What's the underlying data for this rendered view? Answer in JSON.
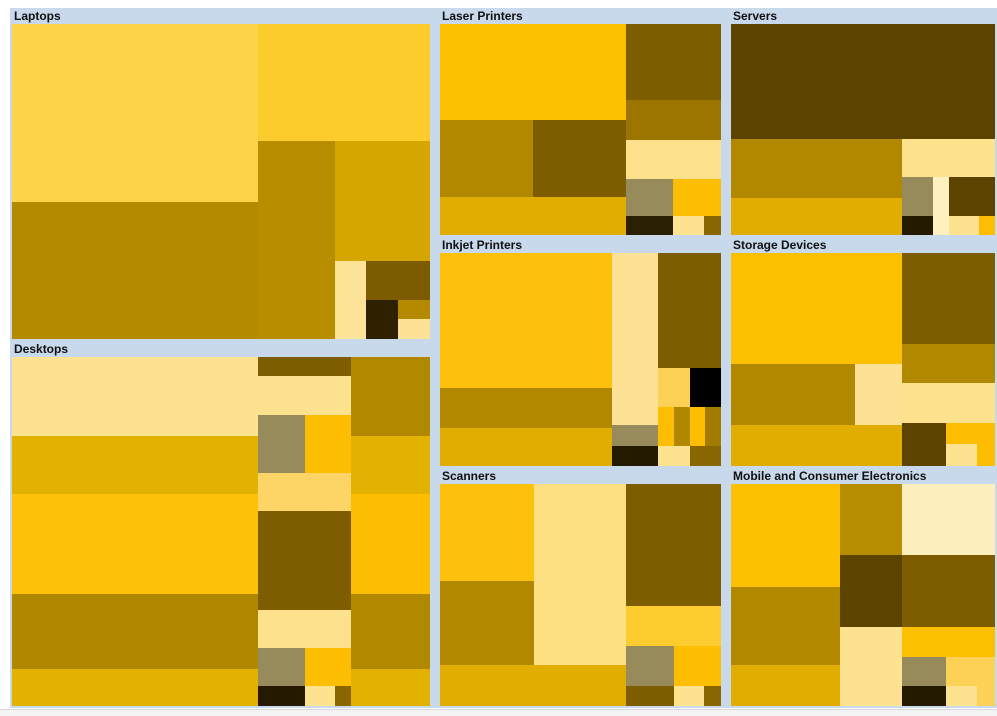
{
  "chart_data": {
    "type": "treemap",
    "groups": [
      {
        "name": "Laptops",
        "cells": [
          {
            "x": 0.0,
            "y": 0.0,
            "w": 0.588,
            "h": 0.565,
            "color": "#fcd349"
          },
          {
            "x": 0.0,
            "y": 0.565,
            "w": 0.588,
            "h": 0.435,
            "color": "#b48b00"
          },
          {
            "x": 0.588,
            "y": 0.0,
            "w": 0.412,
            "h": 0.373,
            "color": "#fccb2c"
          },
          {
            "x": 0.588,
            "y": 0.373,
            "w": 0.184,
            "h": 0.627,
            "color": "#b88e00"
          },
          {
            "x": 0.772,
            "y": 0.373,
            "w": 0.228,
            "h": 0.379,
            "color": "#d6a600"
          },
          {
            "x": 0.772,
            "y": 0.752,
            "w": 0.075,
            "h": 0.248,
            "color": "#fde397"
          },
          {
            "x": 0.847,
            "y": 0.752,
            "w": 0.153,
            "h": 0.124,
            "color": "#7d5b00"
          },
          {
            "x": 0.847,
            "y": 0.876,
            "w": 0.076,
            "h": 0.124,
            "color": "#2d2100"
          },
          {
            "x": 0.923,
            "y": 0.876,
            "w": 0.077,
            "h": 0.06,
            "color": "#b58a00"
          },
          {
            "x": 0.923,
            "y": 0.936,
            "w": 0.077,
            "h": 0.064,
            "color": "#fde195"
          }
        ]
      },
      {
        "name": "Desktops",
        "cells": [
          {
            "x": 0.0,
            "y": 0.0,
            "w": 0.588,
            "h": 0.227,
            "color": "#fde291"
          },
          {
            "x": 0.0,
            "y": 0.227,
            "w": 0.588,
            "h": 0.166,
            "color": "#e3b100"
          },
          {
            "x": 0.0,
            "y": 0.393,
            "w": 0.588,
            "h": 0.287,
            "color": "#fdc109"
          },
          {
            "x": 0.0,
            "y": 0.68,
            "w": 0.588,
            "h": 0.213,
            "color": "#b08800"
          },
          {
            "x": 0.0,
            "y": 0.893,
            "w": 0.588,
            "h": 0.107,
            "color": "#e3b100"
          },
          {
            "x": 0.588,
            "y": 0.0,
            "w": 0.224,
            "h": 0.055,
            "color": "#7e5c00"
          },
          {
            "x": 0.588,
            "y": 0.055,
            "w": 0.224,
            "h": 0.11,
            "color": "#fde390"
          },
          {
            "x": 0.588,
            "y": 0.165,
            "w": 0.112,
            "h": 0.166,
            "color": "#978a5b"
          },
          {
            "x": 0.7,
            "y": 0.165,
            "w": 0.112,
            "h": 0.166,
            "color": "#fdbd00"
          },
          {
            "x": 0.588,
            "y": 0.331,
            "w": 0.224,
            "h": 0.111,
            "color": "#fdd466"
          },
          {
            "x": 0.588,
            "y": 0.442,
            "w": 0.224,
            "h": 0.282,
            "color": "#7e5c00"
          },
          {
            "x": 0.588,
            "y": 0.724,
            "w": 0.224,
            "h": 0.11,
            "color": "#fde18c"
          },
          {
            "x": 0.588,
            "y": 0.834,
            "w": 0.112,
            "h": 0.11,
            "color": "#978a5b"
          },
          {
            "x": 0.7,
            "y": 0.834,
            "w": 0.112,
            "h": 0.11,
            "color": "#fdbd00"
          },
          {
            "x": 0.588,
            "y": 0.944,
            "w": 0.112,
            "h": 0.056,
            "color": "#251a00"
          },
          {
            "x": 0.7,
            "y": 0.944,
            "w": 0.073,
            "h": 0.056,
            "color": "#fde390"
          },
          {
            "x": 0.773,
            "y": 0.944,
            "w": 0.039,
            "h": 0.056,
            "color": "#8a6600"
          },
          {
            "x": 0.812,
            "y": 0.0,
            "w": 0.188,
            "h": 0.227,
            "color": "#b18800"
          },
          {
            "x": 0.812,
            "y": 0.227,
            "w": 0.188,
            "h": 0.166,
            "color": "#e3b100"
          },
          {
            "x": 0.812,
            "y": 0.393,
            "w": 0.188,
            "h": 0.287,
            "color": "#fdbd00"
          },
          {
            "x": 0.812,
            "y": 0.68,
            "w": 0.188,
            "h": 0.213,
            "color": "#b18800"
          },
          {
            "x": 0.812,
            "y": 0.893,
            "w": 0.188,
            "h": 0.107,
            "color": "#e3b100"
          }
        ]
      },
      {
        "name": "Laser Printers",
        "cells": [
          {
            "x": 0.0,
            "y": 0.0,
            "w": 0.663,
            "h": 0.454,
            "color": "#fdc000"
          },
          {
            "x": 0.0,
            "y": 0.454,
            "w": 0.33,
            "h": 0.367,
            "color": "#b28800"
          },
          {
            "x": 0.33,
            "y": 0.454,
            "w": 0.333,
            "h": 0.367,
            "color": "#7e5c00"
          },
          {
            "x": 0.0,
            "y": 0.821,
            "w": 0.663,
            "h": 0.179,
            "color": "#e0ad00"
          },
          {
            "x": 0.663,
            "y": 0.0,
            "w": 0.337,
            "h": 0.358,
            "color": "#7e5c00"
          },
          {
            "x": 0.663,
            "y": 0.358,
            "w": 0.337,
            "h": 0.193,
            "color": "#9c7400"
          },
          {
            "x": 0.663,
            "y": 0.551,
            "w": 0.337,
            "h": 0.182,
            "color": "#fde18c"
          },
          {
            "x": 0.663,
            "y": 0.733,
            "w": 0.167,
            "h": 0.179,
            "color": "#978a5b"
          },
          {
            "x": 0.83,
            "y": 0.733,
            "w": 0.17,
            "h": 0.179,
            "color": "#fdbd00"
          },
          {
            "x": 0.663,
            "y": 0.912,
            "w": 0.167,
            "h": 0.088,
            "color": "#2a1f00"
          },
          {
            "x": 0.83,
            "y": 0.912,
            "w": 0.11,
            "h": 0.088,
            "color": "#fde390"
          },
          {
            "x": 0.94,
            "y": 0.912,
            "w": 0.06,
            "h": 0.088,
            "color": "#8a6600"
          }
        ]
      },
      {
        "name": "Inkjet Printers",
        "cells": [
          {
            "x": 0.0,
            "y": 0.0,
            "w": 0.611,
            "h": 0.636,
            "color": "#fdc10b"
          },
          {
            "x": 0.0,
            "y": 0.636,
            "w": 0.611,
            "h": 0.186,
            "color": "#b28800"
          },
          {
            "x": 0.0,
            "y": 0.822,
            "w": 0.611,
            "h": 0.178,
            "color": "#e0ad00"
          },
          {
            "x": 0.611,
            "y": 0.0,
            "w": 0.166,
            "h": 0.809,
            "color": "#fde296"
          },
          {
            "x": 0.777,
            "y": 0.0,
            "w": 0.223,
            "h": 0.54,
            "color": "#7e5c00"
          },
          {
            "x": 0.777,
            "y": 0.54,
            "w": 0.111,
            "h": 0.181,
            "color": "#fdd155"
          },
          {
            "x": 0.888,
            "y": 0.54,
            "w": 0.112,
            "h": 0.181,
            "color": "#000000"
          },
          {
            "x": 0.611,
            "y": 0.809,
            "w": 0.166,
            "h": 0.096,
            "color": "#978a5b"
          },
          {
            "x": 0.777,
            "y": 0.721,
            "w": 0.056,
            "h": 0.184,
            "color": "#fdbd00"
          },
          {
            "x": 0.833,
            "y": 0.721,
            "w": 0.056,
            "h": 0.184,
            "color": "#b08800"
          },
          {
            "x": 0.889,
            "y": 0.721,
            "w": 0.055,
            "h": 0.184,
            "color": "#fdbd00"
          },
          {
            "x": 0.944,
            "y": 0.721,
            "w": 0.056,
            "h": 0.184,
            "color": "#a27c00"
          },
          {
            "x": 0.611,
            "y": 0.905,
            "w": 0.166,
            "h": 0.095,
            "color": "#241a00"
          },
          {
            "x": 0.777,
            "y": 0.905,
            "w": 0.112,
            "h": 0.095,
            "color": "#fde390"
          },
          {
            "x": 0.889,
            "y": 0.905,
            "w": 0.111,
            "h": 0.095,
            "color": "#8a6600"
          }
        ]
      },
      {
        "name": "Servers",
        "cells": [
          {
            "x": 0.0,
            "y": 0.0,
            "w": 1.0,
            "h": 0.545,
            "color": "#5c4300"
          },
          {
            "x": 0.0,
            "y": 0.545,
            "w": 0.647,
            "h": 0.278,
            "color": "#b28800"
          },
          {
            "x": 0.0,
            "y": 0.823,
            "w": 0.647,
            "h": 0.177,
            "color": "#e0ad00"
          },
          {
            "x": 0.647,
            "y": 0.545,
            "w": 0.353,
            "h": 0.182,
            "color": "#fde18c"
          },
          {
            "x": 0.647,
            "y": 0.727,
            "w": 0.119,
            "h": 0.182,
            "color": "#978a5b"
          },
          {
            "x": 0.766,
            "y": 0.727,
            "w": 0.058,
            "h": 0.273,
            "color": "#fff0c0"
          },
          {
            "x": 0.824,
            "y": 0.727,
            "w": 0.176,
            "h": 0.182,
            "color": "#5c4300"
          },
          {
            "x": 0.647,
            "y": 0.909,
            "w": 0.119,
            "h": 0.091,
            "color": "#241a00"
          },
          {
            "x": 0.824,
            "y": 0.909,
            "w": 0.117,
            "h": 0.091,
            "color": "#fde390"
          },
          {
            "x": 0.941,
            "y": 0.909,
            "w": 0.059,
            "h": 0.091,
            "color": "#fdbd00"
          }
        ]
      },
      {
        "name": "Storage Devices",
        "cells": [
          {
            "x": 0.0,
            "y": 0.0,
            "w": 0.647,
            "h": 0.522,
            "color": "#fdc000"
          },
          {
            "x": 0.0,
            "y": 0.522,
            "w": 0.468,
            "h": 0.287,
            "color": "#b28800"
          },
          {
            "x": 0.468,
            "y": 0.522,
            "w": 0.179,
            "h": 0.287,
            "color": "#fde296"
          },
          {
            "x": 0.0,
            "y": 0.809,
            "w": 0.647,
            "h": 0.191,
            "color": "#e0ad00"
          },
          {
            "x": 0.647,
            "y": 0.0,
            "w": 0.353,
            "h": 0.428,
            "color": "#7e5c00"
          },
          {
            "x": 0.647,
            "y": 0.428,
            "w": 0.353,
            "h": 0.181,
            "color": "#b28800"
          },
          {
            "x": 0.647,
            "y": 0.609,
            "w": 0.353,
            "h": 0.191,
            "color": "#fde18c"
          },
          {
            "x": 0.647,
            "y": 0.8,
            "w": 0.166,
            "h": 0.2,
            "color": "#5c4300"
          },
          {
            "x": 0.813,
            "y": 0.8,
            "w": 0.187,
            "h": 0.098,
            "color": "#fdbd00"
          },
          {
            "x": 0.813,
            "y": 0.898,
            "w": 0.117,
            "h": 0.102,
            "color": "#fde390"
          },
          {
            "x": 0.93,
            "y": 0.898,
            "w": 0.07,
            "h": 0.102,
            "color": "#fdbd00"
          }
        ]
      },
      {
        "name": "Scanners",
        "cells": [
          {
            "x": 0.0,
            "y": 0.0,
            "w": 0.333,
            "h": 0.438,
            "color": "#fdc10b"
          },
          {
            "x": 0.0,
            "y": 0.438,
            "w": 0.333,
            "h": 0.377,
            "color": "#b28800"
          },
          {
            "x": 0.333,
            "y": 0.0,
            "w": 0.33,
            "h": 0.815,
            "color": "#fde081"
          },
          {
            "x": 0.0,
            "y": 0.815,
            "w": 0.663,
            "h": 0.185,
            "color": "#e0ad00"
          },
          {
            "x": 0.663,
            "y": 0.0,
            "w": 0.337,
            "h": 0.551,
            "color": "#7e5c00"
          },
          {
            "x": 0.663,
            "y": 0.551,
            "w": 0.337,
            "h": 0.179,
            "color": "#fdcd30"
          },
          {
            "x": 0.663,
            "y": 0.73,
            "w": 0.168,
            "h": 0.179,
            "color": "#978a5b"
          },
          {
            "x": 0.831,
            "y": 0.73,
            "w": 0.169,
            "h": 0.179,
            "color": "#fdbd00"
          },
          {
            "x": 0.663,
            "y": 0.909,
            "w": 0.168,
            "h": 0.091,
            "color": "#7e5c00"
          },
          {
            "x": 0.831,
            "y": 0.909,
            "w": 0.109,
            "h": 0.091,
            "color": "#fde390"
          },
          {
            "x": 0.94,
            "y": 0.909,
            "w": 0.06,
            "h": 0.091,
            "color": "#8a6600"
          }
        ]
      },
      {
        "name": "Mobile and Consumer Electronics",
        "cells": [
          {
            "x": 0.0,
            "y": 0.0,
            "w": 0.411,
            "h": 0.462,
            "color": "#fdc000"
          },
          {
            "x": 0.0,
            "y": 0.462,
            "w": 0.411,
            "h": 0.353,
            "color": "#b28800"
          },
          {
            "x": 0.0,
            "y": 0.815,
            "w": 0.411,
            "h": 0.185,
            "color": "#e0ad00"
          },
          {
            "x": 0.411,
            "y": 0.0,
            "w": 0.236,
            "h": 0.321,
            "color": "#b68c00"
          },
          {
            "x": 0.411,
            "y": 0.321,
            "w": 0.236,
            "h": 0.321,
            "color": "#5c4300"
          },
          {
            "x": 0.411,
            "y": 0.642,
            "w": 0.236,
            "h": 0.358,
            "color": "#fde291"
          },
          {
            "x": 0.647,
            "y": 0.0,
            "w": 0.353,
            "h": 0.321,
            "color": "#fdeebe"
          },
          {
            "x": 0.647,
            "y": 0.321,
            "w": 0.353,
            "h": 0.321,
            "color": "#7e5c00"
          },
          {
            "x": 0.647,
            "y": 0.642,
            "w": 0.353,
            "h": 0.137,
            "color": "#fdc000"
          },
          {
            "x": 0.647,
            "y": 0.779,
            "w": 0.169,
            "h": 0.13,
            "color": "#978a5b"
          },
          {
            "x": 0.816,
            "y": 0.779,
            "w": 0.184,
            "h": 0.13,
            "color": "#fdd155"
          },
          {
            "x": 0.647,
            "y": 0.909,
            "w": 0.169,
            "h": 0.091,
            "color": "#241a00"
          },
          {
            "x": 0.816,
            "y": 0.909,
            "w": 0.114,
            "h": 0.091,
            "color": "#fde390"
          },
          {
            "x": 0.93,
            "y": 0.909,
            "w": 0.07,
            "h": 0.091,
            "color": "#fdd155"
          }
        ]
      }
    ]
  }
}
